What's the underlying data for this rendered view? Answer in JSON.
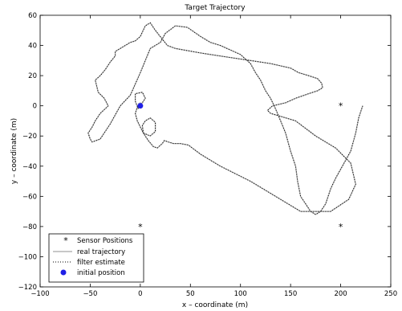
{
  "chart_data": {
    "type": "line",
    "title": "Target Trajectory",
    "xlabel": "x – coordinate (m)",
    "ylabel": "y – coordinate (m)",
    "xlim": [
      -100,
      250
    ],
    "ylim": [
      -120,
      60
    ],
    "xticks": [
      -100,
      -50,
      0,
      50,
      100,
      150,
      200,
      250
    ],
    "yticks": [
      -120,
      -100,
      -80,
      -60,
      -40,
      -20,
      0,
      20,
      40,
      60
    ],
    "grid": false,
    "legend_position": "bottom-left",
    "series": [
      {
        "name": "Sensor Positions",
        "style": "markers",
        "marker": "asterisk",
        "color": "#000000",
        "x": [
          0,
          200,
          0,
          200
        ],
        "y": [
          -80,
          -80,
          0,
          0
        ]
      },
      {
        "name": "real trajectory",
        "style": "solid",
        "color": "#a6a6a6",
        "x": [
          -2,
          -5,
          -5,
          2,
          5,
          2,
          -3,
          -5,
          -3,
          3,
          10,
          15,
          15,
          10,
          5,
          2,
          3,
          8,
          13,
          17,
          22,
          24,
          28,
          33,
          40,
          48,
          60,
          80,
          110,
          135,
          160,
          190,
          208,
          215,
          210,
          195,
          175,
          155,
          140,
          130,
          127,
          132,
          145,
          155,
          168,
          177,
          182,
          181,
          177,
          168,
          158,
          150,
          130,
          110,
          90,
          60,
          35,
          27,
          21,
          15,
          10,
          5,
          0,
          -5,
          -10,
          -15,
          -20,
          -25,
          -25,
          -30,
          -35,
          -40,
          -45,
          -42,
          -36,
          -32,
          -40,
          -45,
          -48,
          -52,
          -50,
          -48,
          -40,
          -30,
          -20,
          -10,
          0,
          10,
          20,
          25,
          35,
          47,
          60,
          70,
          80,
          100,
          110,
          115,
          120,
          125,
          130,
          135,
          140,
          145,
          150,
          155,
          157,
          160,
          165,
          170,
          175,
          180,
          185,
          190,
          195,
          200,
          210,
          215,
          218,
          222
        ],
        "y": [
          -2,
          3,
          8,
          9,
          5,
          2,
          -1,
          -5,
          -10,
          -18,
          -20,
          -17,
          -11,
          -8,
          -10,
          -13,
          -18,
          -23,
          -27,
          -28,
          -25,
          -23,
          -24,
          -25,
          -25,
          -26,
          -32,
          -40,
          -50,
          -60,
          -70,
          -70,
          -62,
          -52,
          -38,
          -28,
          -20,
          -10,
          -7,
          -5,
          -3,
          0,
          2,
          5,
          8,
          10,
          12,
          15,
          18,
          20,
          22,
          25,
          28,
          30,
          32,
          35,
          38,
          40,
          45,
          50,
          55,
          53,
          46,
          43,
          42,
          40,
          38,
          36,
          33,
          29,
          24,
          20,
          17,
          9,
          5,
          0,
          -5,
          -10,
          -14,
          -18,
          -22,
          -24,
          -22,
          -12,
          0,
          7,
          22,
          38,
          42,
          48,
          53,
          52,
          46,
          42,
          40,
          34,
          28,
          22,
          17,
          10,
          5,
          -2,
          -10,
          -18,
          -30,
          -40,
          -50,
          -60,
          -65,
          -70,
          -72,
          -70,
          -65,
          -55,
          -48,
          -42,
          -30,
          -18,
          -8,
          0
        ],
        "note": ""
      },
      {
        "name": "filter estimate",
        "style": "dotted",
        "color": "#000000"
      },
      {
        "name": "initial position",
        "style": "marker",
        "marker": "filled-circle",
        "color": "#1f1fe6",
        "x": [
          0
        ],
        "y": [
          0
        ]
      }
    ]
  }
}
